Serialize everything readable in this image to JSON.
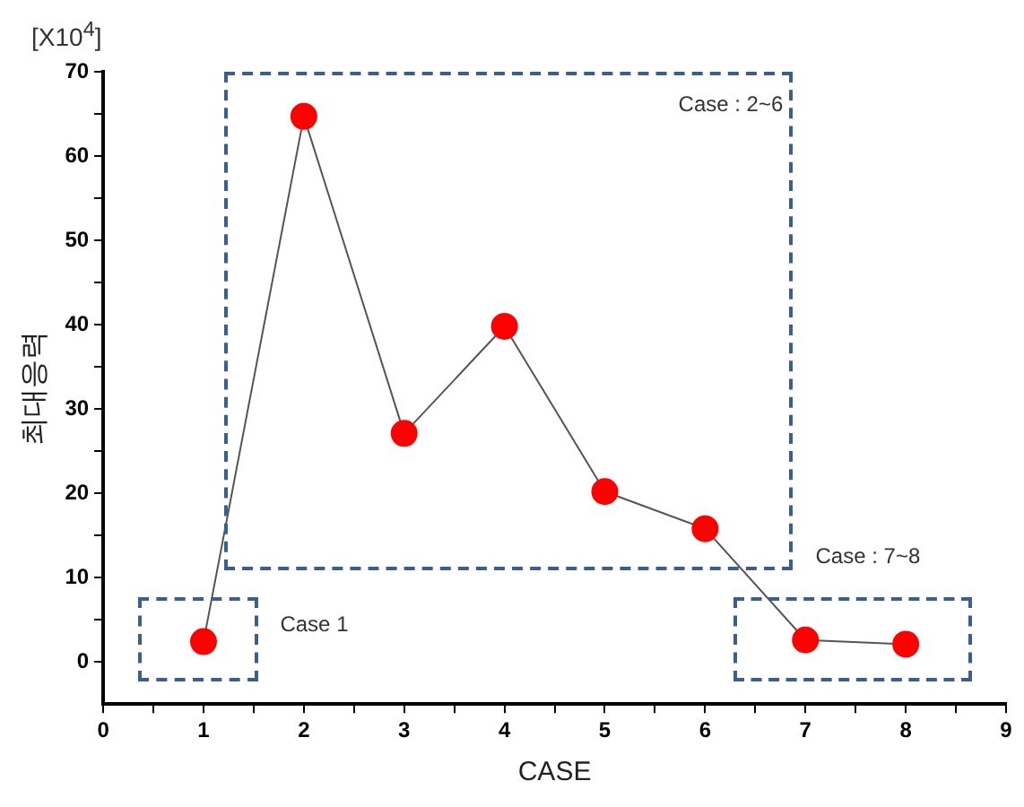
{
  "chart_data": {
    "type": "line",
    "xlabel": "CASE",
    "ylabel": "최대응력",
    "annotations": [
      "[X10$^{4}$]",
      "Case 1",
      "Case : 2~6",
      "Case : 7~8"
    ],
    "x": [
      1,
      2,
      3,
      4,
      5,
      6,
      7,
      8
    ],
    "series": [
      {
        "color": "#ff0000",
        "values": [
          2.4,
          64.7,
          27.1,
          39.8,
          20.2,
          15.8,
          2.6,
          2.1
        ]
      }
    ],
    "xlim": [
      0,
      9
    ],
    "xticks": [
      0,
      {
        "value": 0.5,
        "label": null
      },
      1,
      {
        "value": 1.5,
        "label": null
      },
      2,
      {
        "value": 2.5,
        "label": null
      },
      3,
      {
        "value": 3.5,
        "label": null
      },
      4,
      {
        "value": 4.5,
        "label": null
      },
      5,
      {
        "value": 5.5,
        "label": null
      },
      6,
      {
        "value": 6.5,
        "label": null
      },
      7,
      {
        "value": 7.5,
        "label": null
      },
      8,
      {
        "value": 8.5,
        "label": null
      },
      9
    ],
    "ylim": [
      -5,
      70
    ],
    "yticks": [
      0,
      {
        "value": 5,
        "label": null
      },
      10,
      {
        "value": 15,
        "label": null
      },
      20,
      {
        "value": 25,
        "label": null
      },
      30,
      {
        "value": 35,
        "label": null
      },
      40,
      {
        "value": 45,
        "label": null
      },
      50,
      {
        "value": 55,
        "label": null
      },
      60,
      {
        "value": 65,
        "label": null
      },
      70
    ],
    "grid": false,
    "legend": false,
    "marker": "circle",
    "line_style": "solid"
  }
}
